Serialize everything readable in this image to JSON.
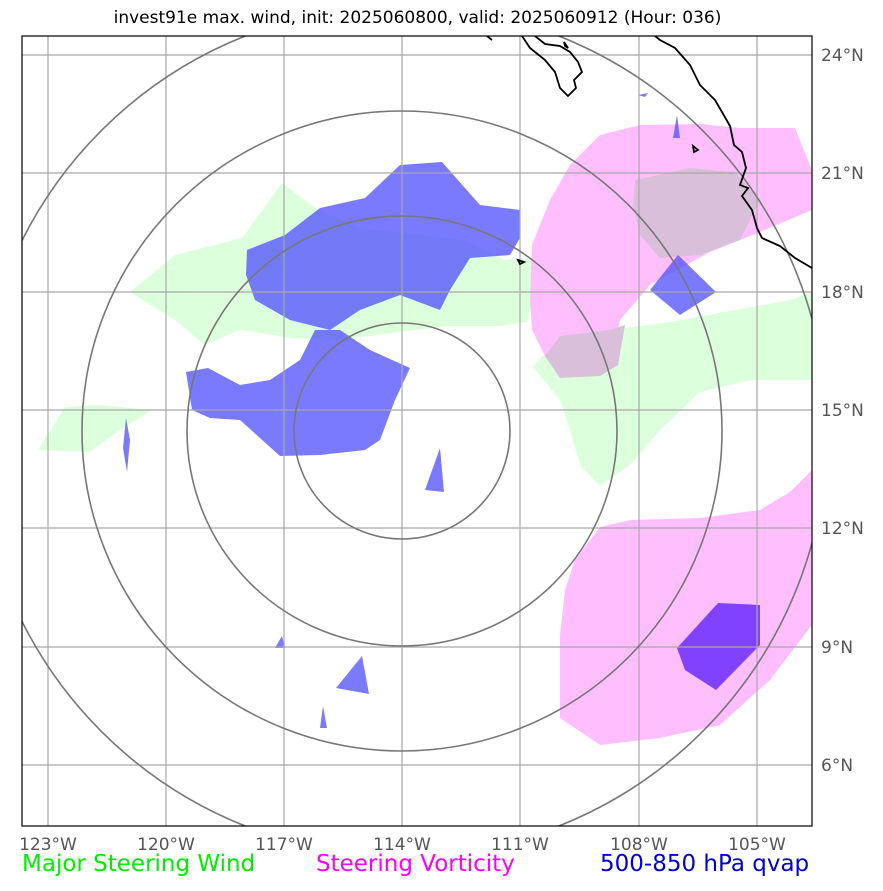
{
  "title": "invest91e max. wind, init: 2025060800, valid: 2025060912 (Hour: 036)",
  "map": {
    "projection": "lat-lon",
    "lon_range": [
      -123.6,
      -103.8
    ],
    "lat_range": [
      4.5,
      24.5
    ],
    "lon_ticks": [
      "123°W",
      "120°W",
      "117°W",
      "114°W",
      "111°W",
      "108°W",
      "105°W"
    ],
    "lat_ticks": [
      "24°N",
      "21°N",
      "18°N",
      "15°N",
      "12°N",
      "9°N",
      "6°N"
    ],
    "storm_center": {
      "lon": -114.0,
      "lat": 14.0
    },
    "range_rings": 4,
    "coastline": true,
    "gridlines": true
  },
  "legend": {
    "wind": "Major Steering Wind",
    "vorticity": "Steering Vorticity",
    "qvap": "500-850 hPa qvap"
  },
  "colors": {
    "wind_fill": "#dcffdc",
    "vorticity_fill": "#ffbfff",
    "qvap_fill": "#5555ff",
    "qvap_strong_fill": "#6a2cff",
    "ring": "#777777",
    "grid": "#a8a8a8",
    "coast": "#000000"
  }
}
